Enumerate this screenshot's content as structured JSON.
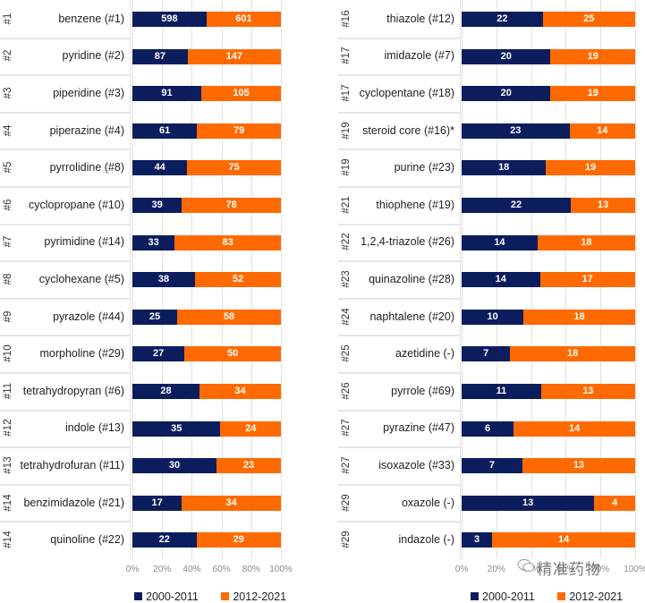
{
  "colors": {
    "series_2000_2011": "#0c1d5e",
    "series_2012_2021": "#ff6a00"
  },
  "chart_data": [
    {
      "type": "bar",
      "orientation": "horizontal",
      "stacking": "percent",
      "panel": "left",
      "categories": [
        "benzene (#1)",
        "pyridine  (#2)",
        "piperidine (#3)",
        "piperazine (#4)",
        "pyrrolidine (#8)",
        "cyclopropane (#10)",
        "pyrimidine (#14)",
        "cyclohexane (#5)",
        "pyrazole (#44)",
        "morpholine (#29)",
        "tetrahydropyran (#6)",
        "indole (#13)",
        "tetrahydrofuran (#11)",
        "benzimidazole (#21)",
        "quinoline (#22)"
      ],
      "ranks": [
        "#1",
        "#2",
        "#3",
        "#4",
        "#5",
        "#6",
        "#7",
        "#8",
        "#9",
        "#10",
        "#11",
        "#12",
        "#13",
        "#14",
        "#14"
      ],
      "series": [
        {
          "name": "2000-2011",
          "values": [
            598,
            87,
            91,
            61,
            44,
            39,
            33,
            38,
            25,
            27,
            28,
            35,
            30,
            17,
            22
          ]
        },
        {
          "name": "2012-2021",
          "values": [
            601,
            147,
            105,
            79,
            75,
            78,
            83,
            52,
            58,
            50,
            34,
            24,
            23,
            34,
            29
          ]
        }
      ],
      "xticks": [
        "0%",
        "20%",
        "40%",
        "60%",
        "80%",
        "100%"
      ],
      "xlim": [
        0,
        100
      ],
      "grid": true,
      "legend": "bottom"
    },
    {
      "type": "bar",
      "orientation": "horizontal",
      "stacking": "percent",
      "panel": "right",
      "categories": [
        "thiazole (#12)",
        "imidazole (#7)",
        "cyclopentane (#18)",
        "steroid core (#16)*",
        "purine (#23)",
        "thiophene (#19)",
        "1,2,4-triazole (#26)",
        "quinazoline (#28)",
        "naphtalene (#20)",
        "azetidine (-)",
        "pyrrole (#69)",
        "pyrazine (#47)",
        "isoxazole (#33)",
        "oxazole (-)",
        "indazole (-)"
      ],
      "ranks": [
        "#16",
        "#17",
        "#17",
        "#19",
        "#19",
        "#21",
        "#22",
        "#23",
        "#24",
        "#25",
        "#26",
        "#27",
        "#27",
        "#29",
        "#29"
      ],
      "series": [
        {
          "name": "2000-2011",
          "values": [
            22,
            20,
            20,
            23,
            18,
            22,
            14,
            14,
            10,
            7,
            11,
            6,
            7,
            13,
            3
          ]
        },
        {
          "name": "2012-2021",
          "values": [
            25,
            19,
            19,
            14,
            19,
            13,
            18,
            17,
            18,
            18,
            13,
            14,
            13,
            4,
            14
          ]
        }
      ],
      "xticks": [
        "0%",
        "20%",
        "40%",
        "60%",
        "80%",
        "100%"
      ],
      "xlim": [
        0,
        100
      ],
      "grid": true,
      "legend": "bottom"
    }
  ],
  "legend": {
    "items": [
      "2000-2011",
      "2012-2021"
    ]
  },
  "watermark": {
    "text": "精准药物",
    "icon": "wechat-icon"
  }
}
